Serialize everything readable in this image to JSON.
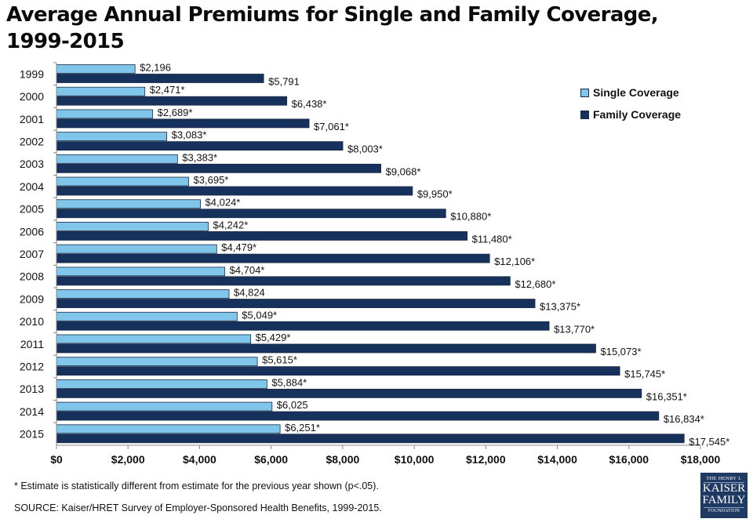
{
  "chart_data": {
    "type": "bar",
    "orientation": "horizontal",
    "title": "Average Annual Premiums for Single and Family Coverage, 1999-2015",
    "title_lines": [
      "Average Annual Premiums for Single and Family Coverage,",
      "1999-2015"
    ],
    "xlabel": "",
    "ylabel": "",
    "categories": [
      "1999",
      "2000",
      "2001",
      "2002",
      "2003",
      "2004",
      "2005",
      "2006",
      "2007",
      "2008",
      "2009",
      "2010",
      "2011",
      "2012",
      "2013",
      "2014",
      "2015"
    ],
    "series": [
      {
        "name": "Single Coverage",
        "color": "#7fc6ea",
        "values": [
          2196,
          2471,
          2689,
          3083,
          3383,
          3695,
          4024,
          4242,
          4479,
          4704,
          4824,
          5049,
          5429,
          5615,
          5884,
          6025,
          6251
        ],
        "labels": [
          "$2,196",
          "$2,471*",
          "$2,689*",
          "$3,083*",
          "$3,383*",
          "$3,695*",
          "$4,024*",
          "$4,242*",
          "$4,479*",
          "$4,704*",
          "$4,824",
          "$5,049*",
          "$5,429*",
          "$5,615*",
          "$5,884*",
          "$6,025",
          "$6,251*"
        ]
      },
      {
        "name": "Family Coverage",
        "color": "#16325c",
        "values": [
          5791,
          6438,
          7061,
          8003,
          9068,
          9950,
          10880,
          11480,
          12106,
          12680,
          13375,
          13770,
          15073,
          15745,
          16351,
          16834,
          17545
        ],
        "labels": [
          "$5,791",
          "$6,438*",
          "$7,061*",
          "$8,003*",
          "$9,068*",
          "$9,950*",
          "$10,880*",
          "$11,480*",
          "$12,106*",
          "$12,680*",
          "$13,375*",
          "$13,770*",
          "$15,073*",
          "$15,745*",
          "$16,351*",
          "$16,834*",
          "$17,545*"
        ]
      }
    ],
    "xlim": [
      0,
      18000
    ],
    "xticks": [
      0,
      2000,
      4000,
      6000,
      8000,
      10000,
      12000,
      14000,
      16000,
      18000
    ],
    "xtick_labels": [
      "$0",
      "$2,000",
      "$4,000",
      "$6,000",
      "$8,000",
      "$10,000",
      "$12,000",
      "$14,000",
      "$16,000",
      "$18,000"
    ],
    "grid": false,
    "legend_position": "top-right"
  },
  "legend": {
    "items": [
      {
        "label": "Single Coverage",
        "color": "#7fc6ea"
      },
      {
        "label": "Family Coverage",
        "color": "#16325c"
      }
    ]
  },
  "footnote": "* Estimate is statistically different from estimate for the previous year shown (p<.05).",
  "source": "SOURCE:  Kaiser/HRET Survey of Employer-Sponsored Health Benefits, 1999-2015.",
  "logo": {
    "line1": "THE HENRY J.",
    "line2": "KAISER",
    "line3": "FAMILY",
    "line4": "FOUNDATION",
    "color": "#1f3a62"
  }
}
